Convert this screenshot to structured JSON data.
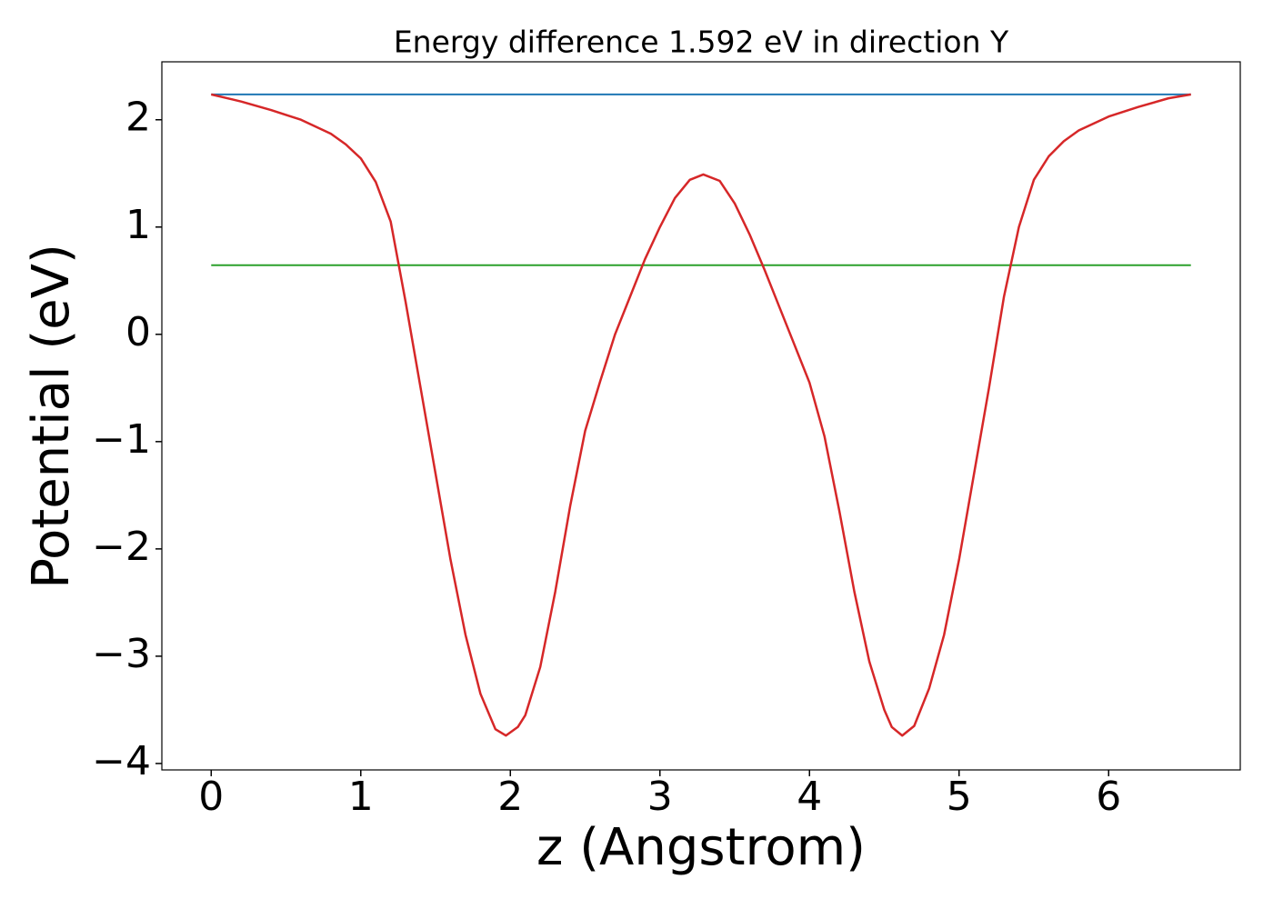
{
  "chart_data": {
    "type": "line",
    "title": "Energy difference 1.592 eV in direction Y",
    "xlabel": "z (Angstrom)",
    "ylabel": "Potential (eV)",
    "xlim": [
      -0.33,
      6.88
    ],
    "ylim": [
      -4.06,
      2.54
    ],
    "xticks": [
      0,
      1,
      2,
      3,
      4,
      5,
      6
    ],
    "yticks": [
      {
        "value": -4,
        "label": "−4"
      },
      {
        "value": -3,
        "label": "−3"
      },
      {
        "value": -2,
        "label": "−2"
      },
      {
        "value": -1,
        "label": "−1"
      },
      0,
      1,
      2
    ],
    "grid": false,
    "series": [
      {
        "color": "#1f77b4",
        "x": [
          0,
          6.55
        ],
        "values": [
          2.236,
          2.236
        ]
      },
      {
        "color": "#2ca02c",
        "x": [
          0,
          6.55
        ],
        "values": [
          0.644,
          0.644
        ]
      },
      {
        "color": "#d62728",
        "x": [
          0,
          0.2,
          0.4,
          0.6,
          0.8,
          0.9,
          1.0,
          1.1,
          1.2,
          1.3,
          1.4,
          1.5,
          1.6,
          1.7,
          1.8,
          1.9,
          1.97,
          2.05,
          2.1,
          2.2,
          2.3,
          2.4,
          2.5,
          2.6,
          2.7,
          2.8,
          2.9,
          3.0,
          3.1,
          3.2,
          3.29,
          3.4,
          3.5,
          3.6,
          3.7,
          3.8,
          3.9,
          4.0,
          4.1,
          4.2,
          4.3,
          4.4,
          4.5,
          4.55,
          4.62,
          4.7,
          4.8,
          4.9,
          5.0,
          5.1,
          5.2,
          5.3,
          5.4,
          5.5,
          5.6,
          5.7,
          5.8,
          6.0,
          6.2,
          6.4,
          6.55
        ],
        "values": [
          2.236,
          2.17,
          2.09,
          2.0,
          1.87,
          1.77,
          1.64,
          1.42,
          1.05,
          0.3,
          -0.5,
          -1.3,
          -2.1,
          -2.8,
          -3.35,
          -3.68,
          -3.74,
          -3.66,
          -3.55,
          -3.1,
          -2.4,
          -1.6,
          -0.9,
          -0.44,
          0.0,
          0.35,
          0.7,
          1.0,
          1.27,
          1.44,
          1.49,
          1.43,
          1.22,
          0.93,
          0.6,
          0.25,
          -0.1,
          -0.45,
          -0.95,
          -1.65,
          -2.4,
          -3.05,
          -3.5,
          -3.66,
          -3.74,
          -3.65,
          -3.3,
          -2.8,
          -2.1,
          -1.3,
          -0.5,
          0.35,
          1.0,
          1.44,
          1.66,
          1.8,
          1.9,
          2.03,
          2.12,
          2.2,
          2.236
        ]
      }
    ]
  }
}
